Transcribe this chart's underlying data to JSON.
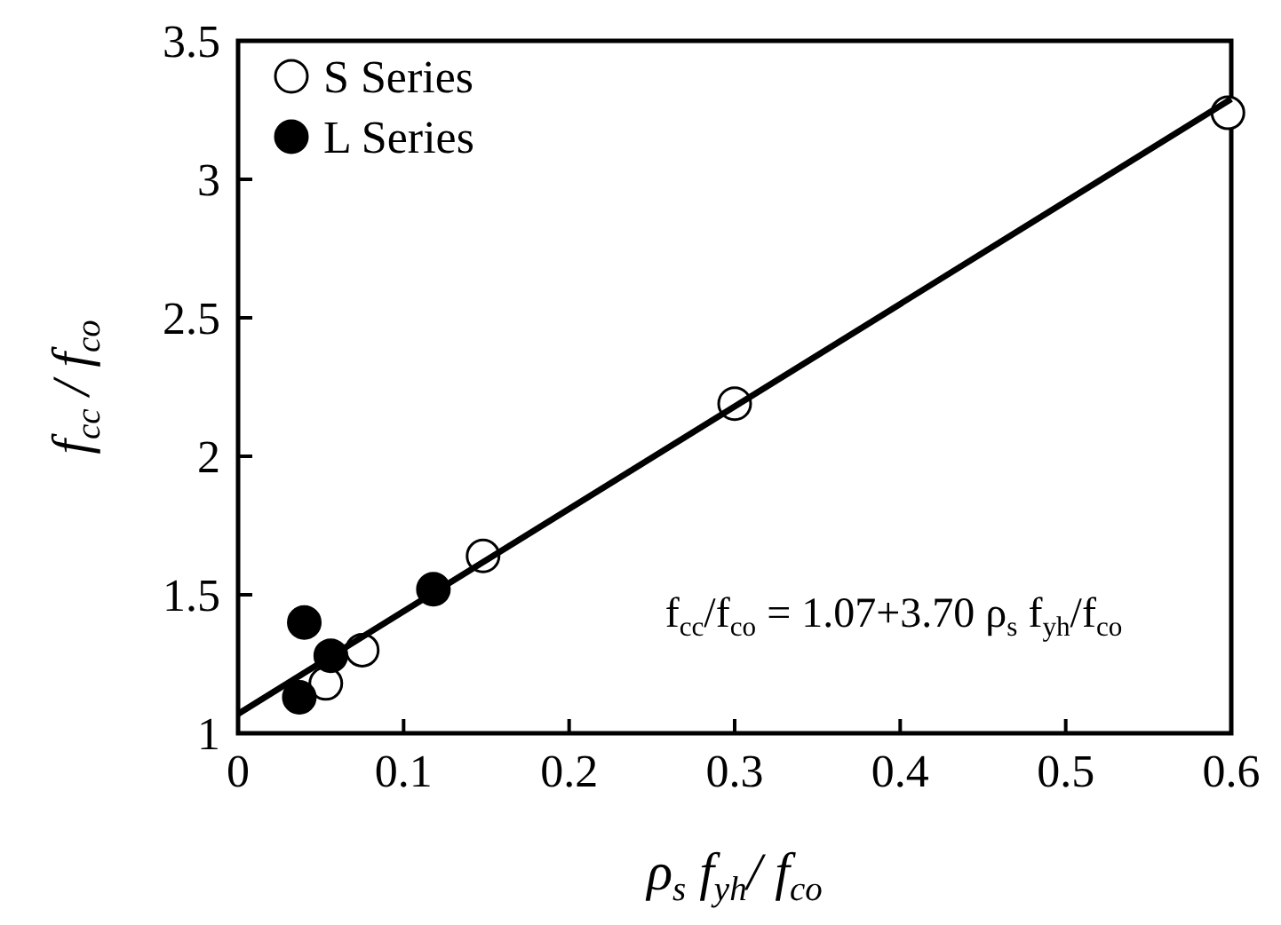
{
  "chart_data": {
    "type": "scatter",
    "xlabel": "ρ$_{s}$ f$_{yh}$/ f$_{co}$",
    "ylabel": "f$_{cc}$ / f$_{co}$",
    "xlim": [
      0,
      0.6
    ],
    "ylim": [
      1,
      3.5
    ],
    "xticks": [
      0,
      0.1,
      0.2,
      0.3,
      0.4,
      0.5,
      0.6
    ],
    "yticks": [
      1,
      1.5,
      2,
      2.5,
      3,
      3.5
    ],
    "grid": false,
    "legend": "top left",
    "marker": "circle",
    "series": [
      {
        "name": "S Series",
        "color": "#ffffff",
        "x": [
          0.053,
          0.075,
          0.148,
          0.3,
          0.598
        ],
        "values": [
          1.18,
          1.3,
          1.64,
          2.19,
          3.24
        ]
      },
      {
        "name": "L Series",
        "color": "#000000",
        "x": [
          0.037,
          0.04,
          0.056,
          0.118
        ],
        "values": [
          1.13,
          1.4,
          1.28,
          1.52
        ]
      },
      {
        "type": "line",
        "color": "#000000",
        "marker": "none",
        "x": [
          0,
          0.6
        ],
        "values": [
          1.07,
          3.29
        ]
      }
    ],
    "annotations": [
      "f$_{cc}$/f$_{co}$ = 1.07+3.70 ρ$_{s}$ f$_{yh}$/f$_{co}$"
    ]
  }
}
